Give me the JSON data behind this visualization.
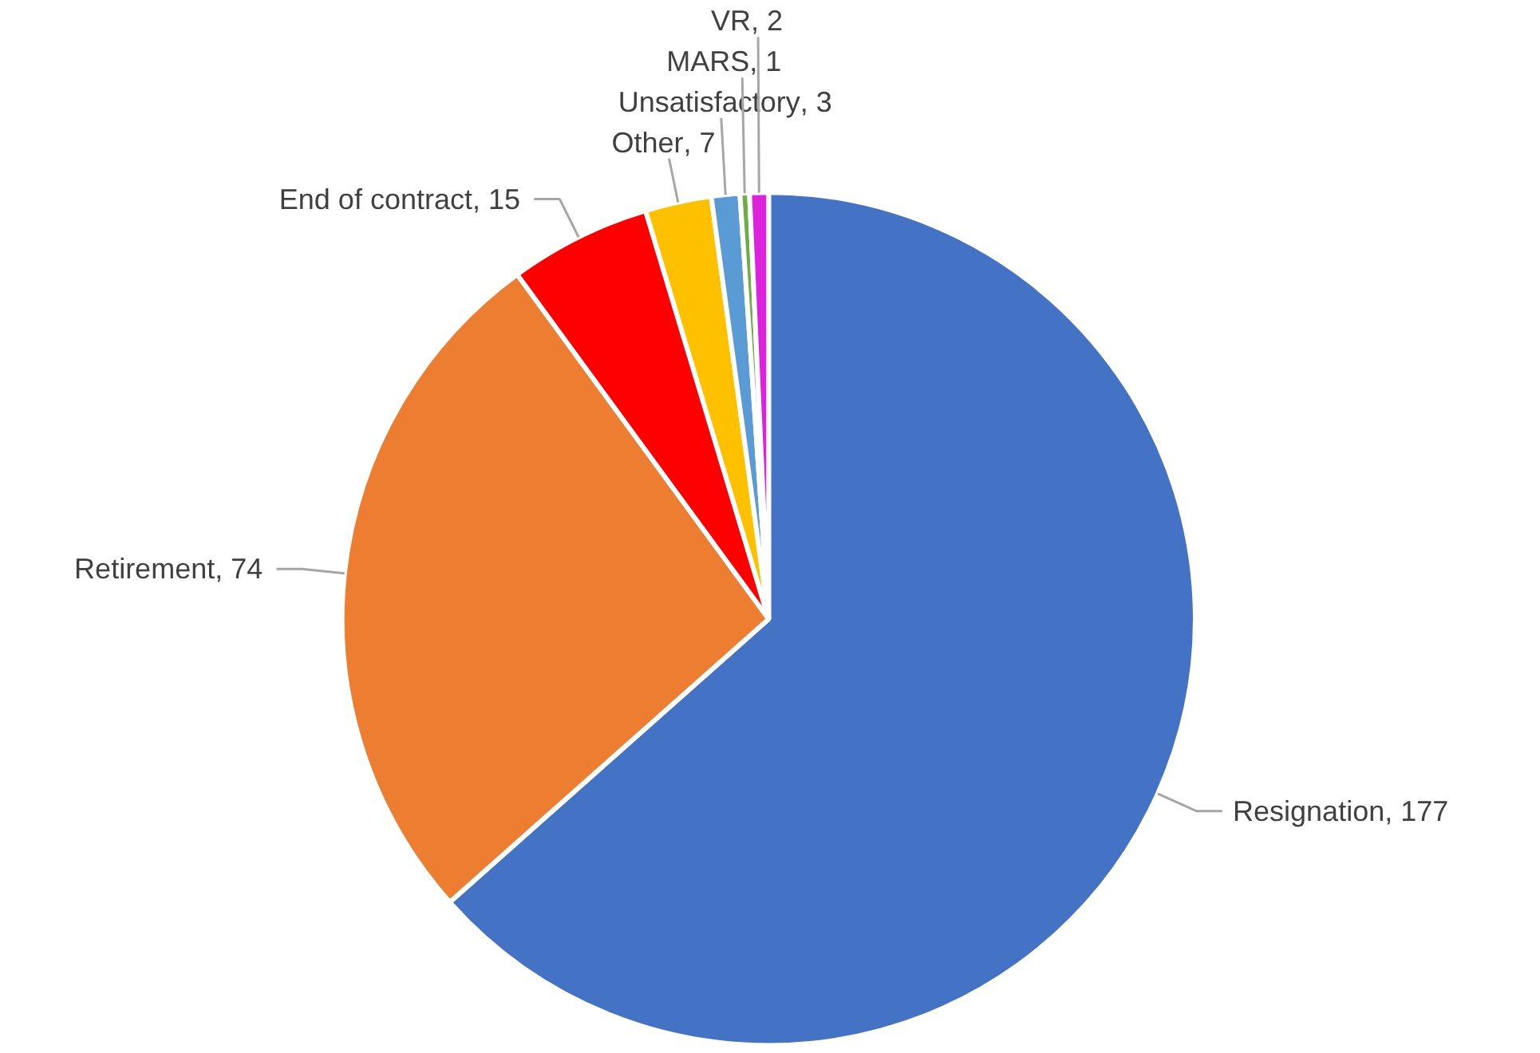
{
  "chart_data": {
    "type": "pie",
    "categories": [
      "Resignation",
      "Retirement",
      "End of contract",
      "Other",
      "Unsatisfactory",
      "MARS",
      "VR"
    ],
    "values": [
      177,
      74,
      15,
      7,
      3,
      1,
      2
    ],
    "colors": [
      "#4472c4",
      "#ed7d31",
      "#ff0000",
      "#ffc000",
      "#5b9bd5",
      "#70ad47",
      "#dd22dd"
    ],
    "value_labels": [
      ", 177",
      ", 74",
      ", 15",
      ", 7",
      ", 3",
      ", 1",
      ", 2"
    ],
    "legend": false
  }
}
